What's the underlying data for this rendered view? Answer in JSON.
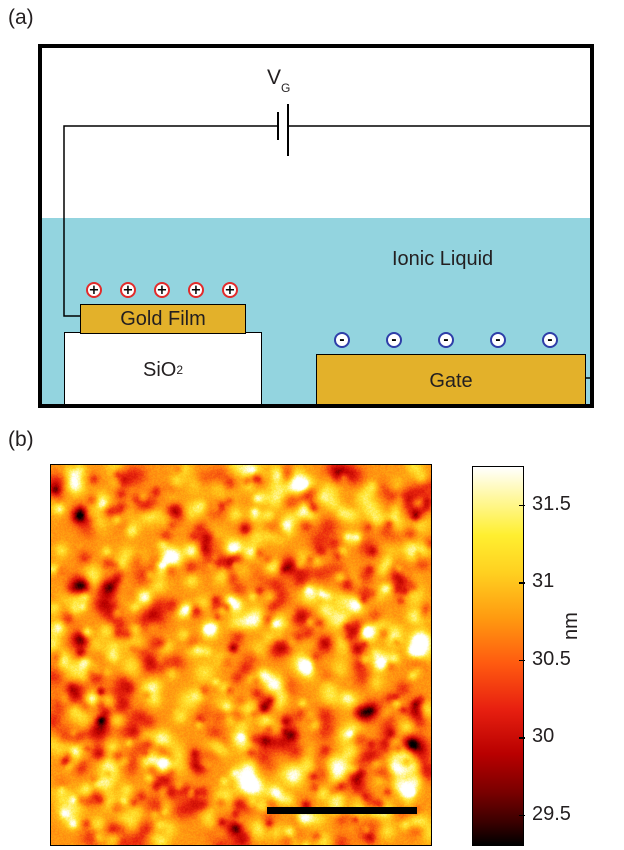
{
  "panel_a": {
    "label": "(a)",
    "voltage_label": "V",
    "voltage_subscript": "G",
    "liquid_label": "Ionic Liquid",
    "film_label": "Gold Film",
    "substrate_label": "SiO",
    "substrate_subscript": "2",
    "gate_label": "Gate",
    "positive_symbol": "+",
    "negative_symbol": "-",
    "positive_ion_count": 5,
    "negative_ion_count": 5,
    "colors": {
      "liquid": "#93d4df",
      "gold": "#e3b12a",
      "positive_ion": "#e12b2b",
      "negative_ion": "#2e3ea8"
    }
  },
  "panel_b": {
    "label": "(b)",
    "colorbar": {
      "unit": "nm",
      "tick_labels": [
        "31.5",
        "31",
        "30.5",
        "30",
        "29.5"
      ],
      "tick_values": [
        31.5,
        31,
        30.5,
        30,
        29.5
      ],
      "range": [
        29.3,
        31.75
      ]
    }
  }
}
